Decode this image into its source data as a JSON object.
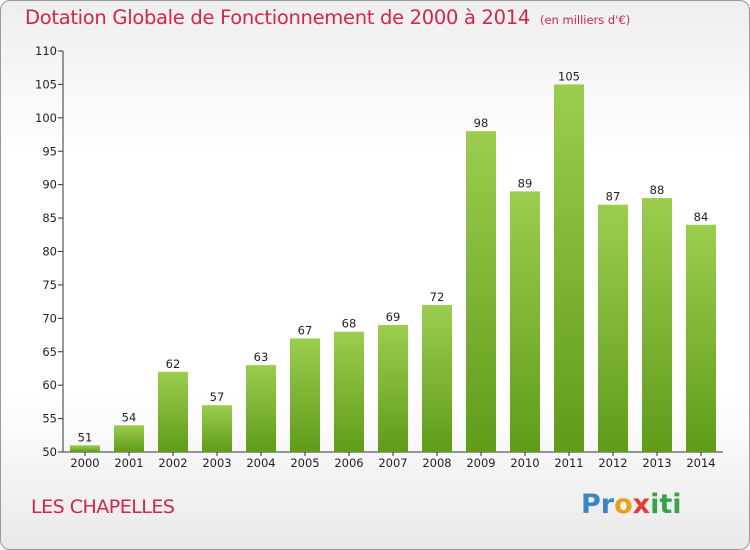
{
  "page": {
    "title": "Dotation Globale de Fonctionnement de 2000 à 2014",
    "unit": "(en milliers d'€)",
    "commune": "LES CHAPELLES",
    "logo_text": "Proxiti"
  },
  "colors": {
    "title": "#d2264a",
    "bar_top": "#9ccd4e",
    "bar_bottom": "#5e9c1a",
    "axis": "#333333"
  },
  "chart_data": {
    "type": "bar",
    "title": "Dotation Globale de Fonctionnement de 2000 à 2014",
    "subtitle": "(en milliers d'€)",
    "xlabel": "",
    "ylabel": "",
    "categories": [
      "2000",
      "2001",
      "2002",
      "2003",
      "2004",
      "2005",
      "2006",
      "2007",
      "2008",
      "2009",
      "2010",
      "2011",
      "2012",
      "2013",
      "2014"
    ],
    "values": [
      51,
      54,
      62,
      57,
      63,
      67,
      68,
      69,
      72,
      98,
      89,
      105,
      87,
      88,
      84
    ],
    "ylim": [
      50,
      110
    ],
    "yticks": [
      50,
      55,
      60,
      65,
      70,
      75,
      80,
      85,
      90,
      95,
      100,
      105,
      110
    ],
    "grid": false,
    "legend": "none"
  }
}
